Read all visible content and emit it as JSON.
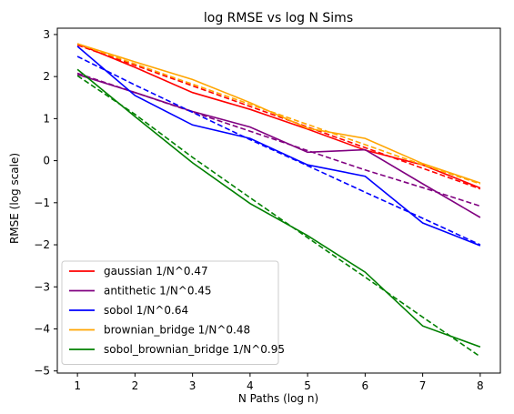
{
  "chart_data": {
    "type": "line",
    "title": "log RMSE vs log N Sims",
    "xlabel": "N Paths (log n)",
    "ylabel": "RMSE (log scale)",
    "xlim": [
      0.65,
      8.35
    ],
    "ylim": [
      -5.05,
      3.15
    ],
    "xticks": [
      1,
      2,
      3,
      4,
      5,
      6,
      7,
      8
    ],
    "yticks": [
      -5,
      -4,
      -3,
      -2,
      -1,
      0,
      1,
      2,
      3
    ],
    "grid": false,
    "legend_position": "lower-left",
    "x": [
      1,
      2,
      3,
      4,
      5,
      6,
      7,
      8
    ],
    "series": [
      {
        "name": "gaussian 1/N^0.47",
        "color": "#ff0000",
        "values": [
          2.78,
          2.22,
          1.62,
          1.22,
          0.75,
          0.25,
          -0.1,
          -0.65
        ],
        "fit": [
          2.75,
          2.27,
          1.78,
          1.29,
          0.8,
          0.31,
          -0.18,
          -0.67
        ]
      },
      {
        "name": "antithetic 1/N^0.45",
        "color": "#800080",
        "values": [
          2.05,
          1.62,
          1.17,
          0.8,
          0.2,
          0.26,
          -0.55,
          -1.35
        ],
        "fit": [
          2.08,
          1.62,
          1.16,
          0.7,
          0.24,
          -0.22,
          -0.64,
          -1.08
        ]
      },
      {
        "name": "sobol 1/N^0.64",
        "color": "#0000ff",
        "values": [
          2.72,
          1.55,
          0.85,
          0.53,
          -0.1,
          -0.37,
          -1.48,
          -2.02
        ],
        "fit": [
          2.48,
          1.8,
          1.15,
          0.5,
          -0.12,
          -0.75,
          -1.37,
          -2.0
        ]
      },
      {
        "name": "brownian_bridge 1/N^0.48",
        "color": "#ffa500",
        "values": [
          2.78,
          2.35,
          1.93,
          1.38,
          0.77,
          0.53,
          -0.07,
          -0.53
        ],
        "fit": [
          2.78,
          2.3,
          1.82,
          1.34,
          0.86,
          0.38,
          -0.1,
          -0.55
        ]
      },
      {
        "name": "sobol_brownian_bridge 1/N^0.95",
        "color": "#008000",
        "values": [
          2.17,
          1.05,
          -0.05,
          -1.02,
          -1.78,
          -2.65,
          -3.93,
          -4.43
        ],
        "fit": [
          2.02,
          1.1,
          0.08,
          -0.88,
          -1.83,
          -2.77,
          -3.72,
          -4.66
        ]
      }
    ]
  }
}
